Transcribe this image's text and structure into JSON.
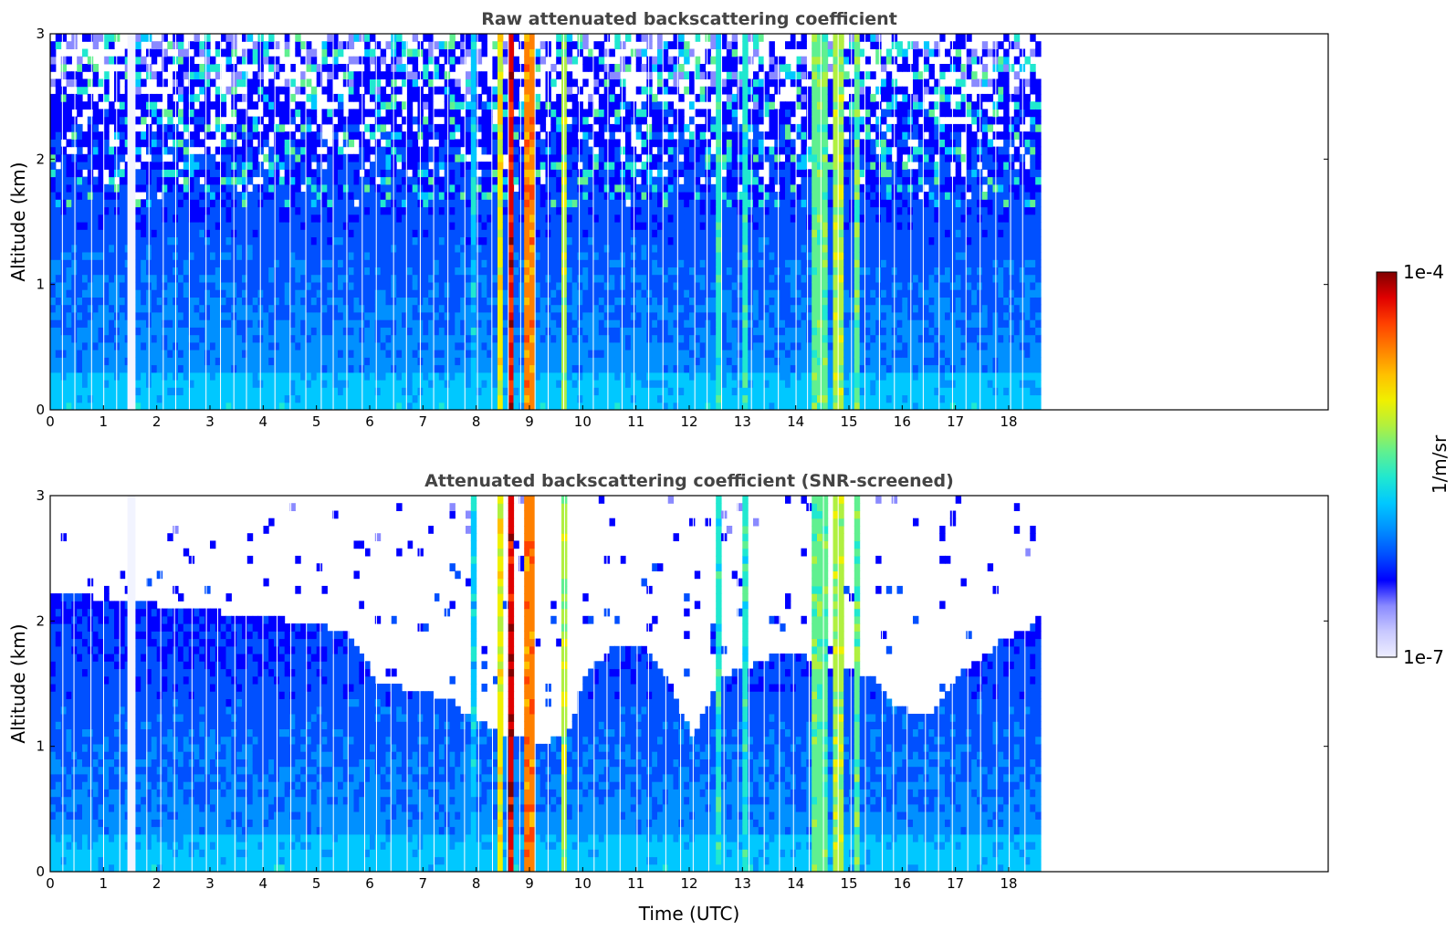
{
  "chart_data": [
    {
      "type": "heatmap",
      "title": "Raw attenuated backscattering coefficient",
      "ylabel": "Altitude (km)",
      "xlabel": "",
      "xlim": [
        0,
        24
      ],
      "ylim": [
        0,
        3
      ],
      "x_ticks": [
        "0",
        "1",
        "2",
        "3",
        "4",
        "5",
        "6",
        "7",
        "8",
        "9",
        "10",
        "11",
        "12",
        "13",
        "14",
        "15",
        "16",
        "17",
        "18"
      ],
      "y_ticks": [
        "0",
        "1",
        "2",
        "3"
      ],
      "data_extent_x": [
        0,
        18.5
      ],
      "screened": false
    },
    {
      "type": "heatmap",
      "title": "Attenuated backscattering coefficient (SNR-screened)",
      "ylabel": "Altitude (km)",
      "xlabel": "Time (UTC)",
      "xlim": [
        0,
        24
      ],
      "ylim": [
        0,
        3
      ],
      "x_ticks": [
        "0",
        "1",
        "2",
        "3",
        "4",
        "5",
        "6",
        "7",
        "8",
        "9",
        "10",
        "11",
        "12",
        "13",
        "14",
        "15",
        "16",
        "17",
        "18"
      ],
      "y_ticks": [
        "0",
        "1",
        "2",
        "3"
      ],
      "data_extent_x": [
        0,
        18.5
      ],
      "screened": true,
      "snr_boundary_km": [
        [
          0,
          2.2
        ],
        [
          1,
          2.15
        ],
        [
          2,
          2.1
        ],
        [
          3,
          2.05
        ],
        [
          4,
          2.0
        ],
        [
          5,
          1.95
        ],
        [
          5.6,
          1.85
        ],
        [
          6,
          1.5
        ],
        [
          7,
          1.4
        ],
        [
          7.5,
          1.3
        ],
        [
          7.9,
          1.2
        ],
        [
          8.3,
          1.1
        ],
        [
          9.2,
          1.0
        ],
        [
          9.7,
          1.1
        ],
        [
          10,
          1.55
        ],
        [
          10.5,
          1.75
        ],
        [
          11,
          1.8
        ],
        [
          11.5,
          1.5
        ],
        [
          12,
          1.05
        ],
        [
          12.5,
          1.5
        ],
        [
          13,
          1.6
        ],
        [
          13.5,
          1.7
        ],
        [
          14,
          1.7
        ],
        [
          14.3,
          1.6
        ],
        [
          15.3,
          1.55
        ],
        [
          15.8,
          1.3
        ],
        [
          16.5,
          1.2
        ],
        [
          17,
          1.55
        ],
        [
          17.5,
          1.7
        ],
        [
          18,
          1.85
        ],
        [
          18.5,
          1.95
        ]
      ]
    }
  ],
  "colorbar": {
    "label": "1/m/sr",
    "max_label": "1e-4",
    "min_label": "1e-7",
    "scale": "log",
    "range": [
      1e-07,
      0.0001
    ],
    "colors": [
      "#eeeeff",
      "#c8c8ff",
      "#8a8aff",
      "#0000ff",
      "#0050ff",
      "#0090ff",
      "#00c8ff",
      "#20e8d0",
      "#60f090",
      "#b0f040",
      "#f0f000",
      "#ffc000",
      "#ff8000",
      "#ff4000",
      "#e00000",
      "#800000"
    ]
  }
}
